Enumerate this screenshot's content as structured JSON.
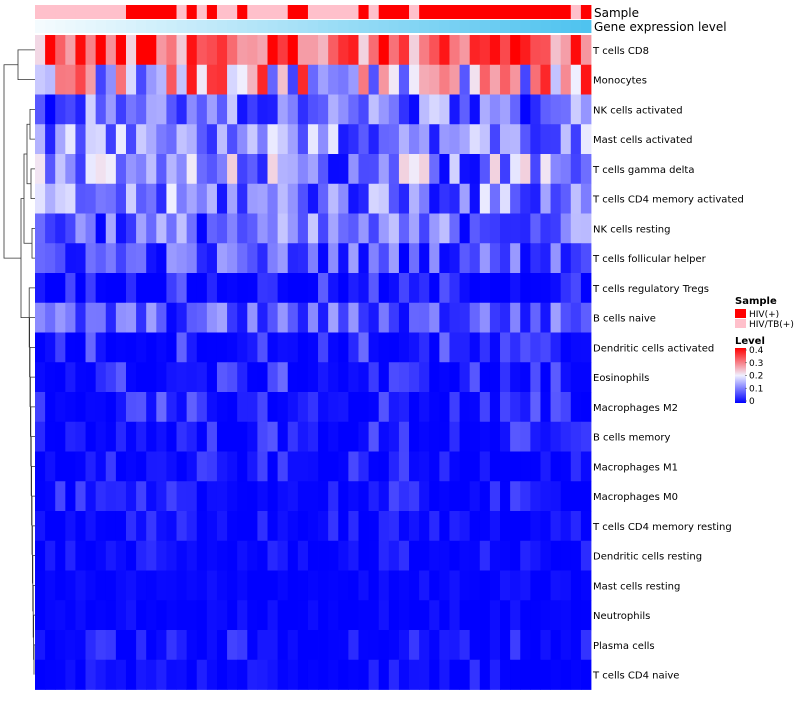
{
  "chart_data": {
    "type": "heatmap",
    "annotation_rows": [
      "Sample",
      "Gene expression level"
    ],
    "rows": [
      "T cells CD8",
      "Monocytes",
      "NK cells activated",
      "Mast cells activated",
      "T cells gamma delta",
      "T cells CD4 memory activated",
      "NK cells resting",
      "T cells follicular helper",
      "T cells regulatory  Tregs",
      "B cells naive",
      "Dendritic cells activated",
      "Eosinophils",
      "Macrophages M2",
      "B cells memory",
      "Macrophages M1",
      "Macrophages M0",
      "T cells CD4 memory resting",
      "Dendritic cells resting",
      "Mast cells resting",
      "Neutrophils",
      "Plasma cells",
      "T cells CD4 naive"
    ],
    "sample_groups": [
      "HIV/TB(+)",
      "HIV/TB(+)",
      "HIV/TB(+)",
      "HIV/TB(+)",
      "HIV/TB(+)",
      "HIV/TB(+)",
      "HIV/TB(+)",
      "HIV/TB(+)",
      "HIV/TB(+)",
      "HIV(+)",
      "HIV(+)",
      "HIV(+)",
      "HIV(+)",
      "HIV(+)",
      "HIV/TB(+)",
      "HIV(+)",
      "HIV/TB(+)",
      "HIV(+)",
      "HIV/TB(+)",
      "HIV/TB(+)",
      "HIV(+)",
      "HIV/TB(+)",
      "HIV/TB(+)",
      "HIV/TB(+)",
      "HIV/TB(+)",
      "HIV(+)",
      "HIV(+)",
      "HIV/TB(+)",
      "HIV/TB(+)",
      "HIV/TB(+)",
      "HIV/TB(+)",
      "HIV/TB(+)",
      "HIV(+)",
      "HIV/TB(+)",
      "HIV(+)",
      "HIV(+)",
      "HIV(+)",
      "HIV/TB(+)",
      "HIV(+)",
      "HIV(+)",
      "HIV(+)",
      "HIV(+)",
      "HIV(+)",
      "HIV(+)",
      "HIV(+)",
      "HIV(+)",
      "HIV(+)",
      "HIV(+)",
      "HIV(+)",
      "HIV(+)",
      "HIV(+)",
      "HIV(+)",
      "HIV(+)",
      "HIV/TB(+)",
      "HIV(+)"
    ],
    "expression_level_range": [
      0,
      1
    ],
    "legend": [
      {
        "title": "Sample",
        "entries": [
          {
            "label": "HIV(+)",
            "color": "#ff0000"
          },
          {
            "label": "HIV/TB(+)",
            "color": "#ffc0cb"
          }
        ]
      },
      {
        "title": "Level",
        "range": [
          0,
          0.4
        ],
        "ticks": [
          "0.4",
          "0.3",
          "0.2",
          "0.1",
          "0"
        ],
        "colors": [
          "#0000ff",
          "#f0f0ff",
          "#ff0000"
        ]
      }
    ],
    "colors": {
      "low": "#0000ff",
      "mid": "#f0f0ff",
      "high": "#ff0000",
      "annotation_low": "#f4fbfe",
      "annotation_high": "#4fc3ef"
    },
    "dendrogram": "hierarchical clustering of rows",
    "data_ranges_by_row": {
      "T cells CD8": [
        0.22,
        0.45
      ],
      "Monocytes": [
        0.05,
        0.4
      ],
      "NK cells activated": [
        0.0,
        0.18
      ],
      "Mast cells activated": [
        0.02,
        0.2
      ],
      "T cells gamma delta": [
        0.0,
        0.23
      ],
      "T cells CD4 memory activated": [
        0.0,
        0.2
      ],
      "NK cells resting": [
        0.0,
        0.17
      ],
      "T cells follicular helper": [
        0.0,
        0.14
      ],
      "T cells regulatory  Tregs": [
        0.0,
        0.08
      ],
      "B cells naive": [
        0.0,
        0.14
      ],
      "Dendritic cells activated": [
        0.0,
        0.1
      ],
      "Eosinophils": [
        0.0,
        0.09
      ],
      "Macrophages M2": [
        0.0,
        0.09
      ],
      "B cells memory": [
        0.0,
        0.08
      ],
      "Macrophages M1": [
        0.0,
        0.06
      ],
      "Macrophages M0": [
        0.0,
        0.06
      ],
      "T cells CD4 memory resting": [
        0.0,
        0.05
      ],
      "Dendritic cells resting": [
        0.0,
        0.04
      ],
      "Mast cells resting": [
        0.0,
        0.02
      ],
      "Neutrophils": [
        0.0,
        0.02
      ],
      "Plasma cells": [
        0.0,
        0.06
      ],
      "T cells CD4 naive": [
        0.0,
        0.05
      ]
    }
  }
}
